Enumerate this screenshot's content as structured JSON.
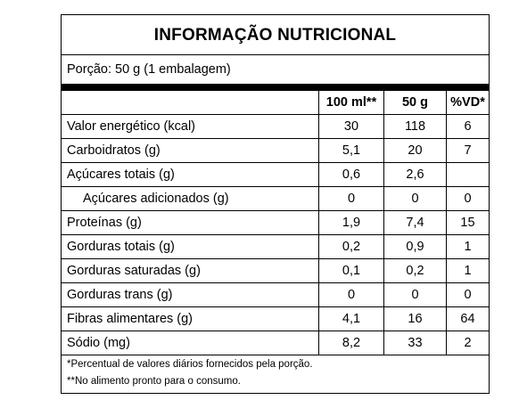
{
  "title": "INFORMAÇÃO NUTRICIONAL",
  "portion": "Porção: 50 g (1 embalagem)",
  "columns": [
    "",
    "100 ml**",
    "50 g",
    "%VD*"
  ],
  "rows": [
    {
      "label": "Valor energético (kcal)",
      "per100": "30",
      "perPortion": "118",
      "vd": "6"
    },
    {
      "label": "Carboidratos (g)",
      "per100": "5,1",
      "perPortion": "20",
      "vd": "7"
    },
    {
      "label": "Açúcares totais (g)",
      "per100": "0,6",
      "perPortion": "2,6",
      "vd": ""
    },
    {
      "label": "Açúcares adicionados (g)",
      "per100": "0",
      "perPortion": "0",
      "vd": "0"
    },
    {
      "label": "Proteínas (g)",
      "per100": "1,9",
      "perPortion": "7,4",
      "vd": "15"
    },
    {
      "label": "Gorduras totais (g)",
      "per100": "0,2",
      "perPortion": "0,9",
      "vd": "1"
    },
    {
      "label": "Gorduras saturadas (g)",
      "per100": "0,1",
      "perPortion": "0,2",
      "vd": "1"
    },
    {
      "label": "Gorduras trans (g)",
      "per100": "0",
      "perPortion": "0",
      "vd": "0"
    },
    {
      "label": "Fibras alimentares (g)",
      "per100": "4,1",
      "perPortion": "16",
      "vd": "64"
    },
    {
      "label": "Sódio (mg)",
      "per100": "8,2",
      "perPortion": "33",
      "vd": "2"
    }
  ],
  "footnotes": [
    "*Percentual de valores diários fornecidos pela porção.",
    "**No alimento pronto para o consumo."
  ]
}
